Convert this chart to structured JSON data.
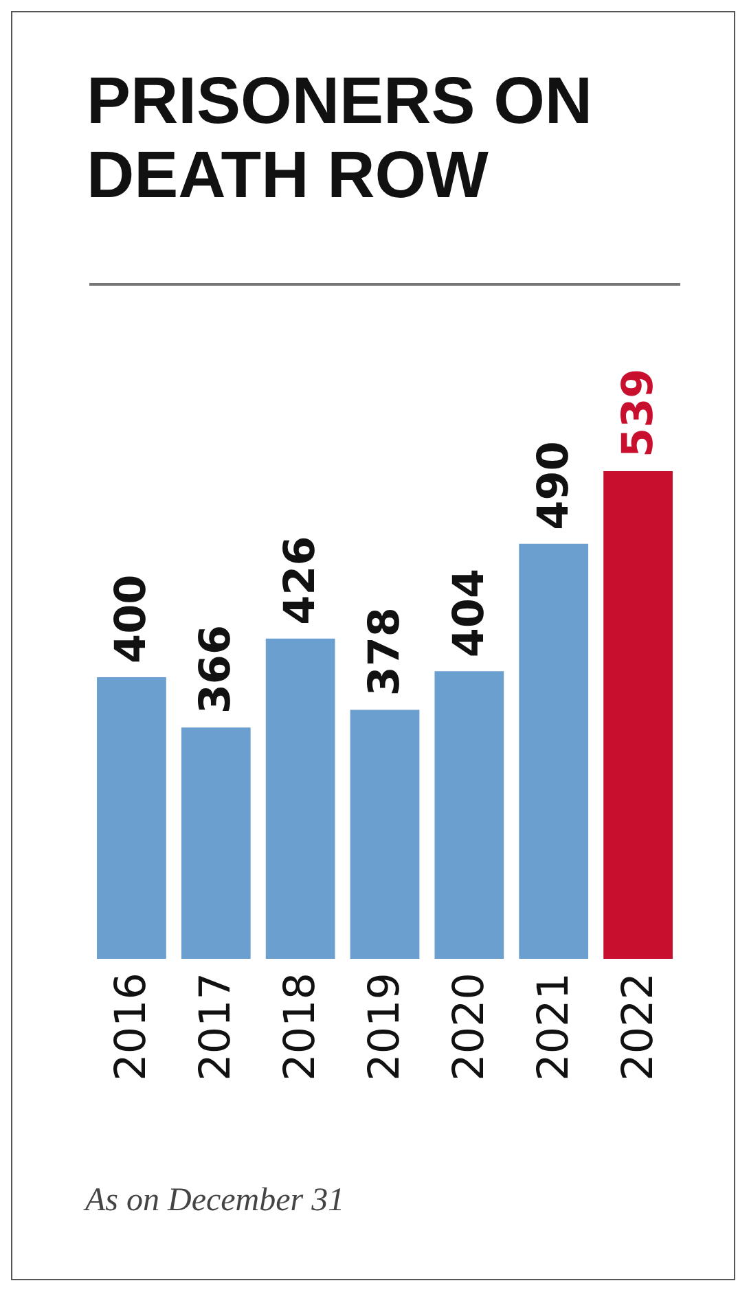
{
  "chart_data": {
    "type": "bar",
    "title": "PRISONERS ON DEATH ROW",
    "categories": [
      "2016",
      "2017",
      "2018",
      "2019",
      "2020",
      "2021",
      "2022"
    ],
    "values": [
      400,
      366,
      426,
      378,
      404,
      490,
      539
    ],
    "colors": [
      "#6a9fd0",
      "#6a9fd0",
      "#6a9fd0",
      "#6a9fd0",
      "#6a9fd0",
      "#6a9fd0",
      "#c8102e"
    ],
    "ylim": [
      210,
      539
    ],
    "tick_labels": "x",
    "grid": false,
    "data_labels": true,
    "annotations": [
      "As on December 31"
    ]
  }
}
